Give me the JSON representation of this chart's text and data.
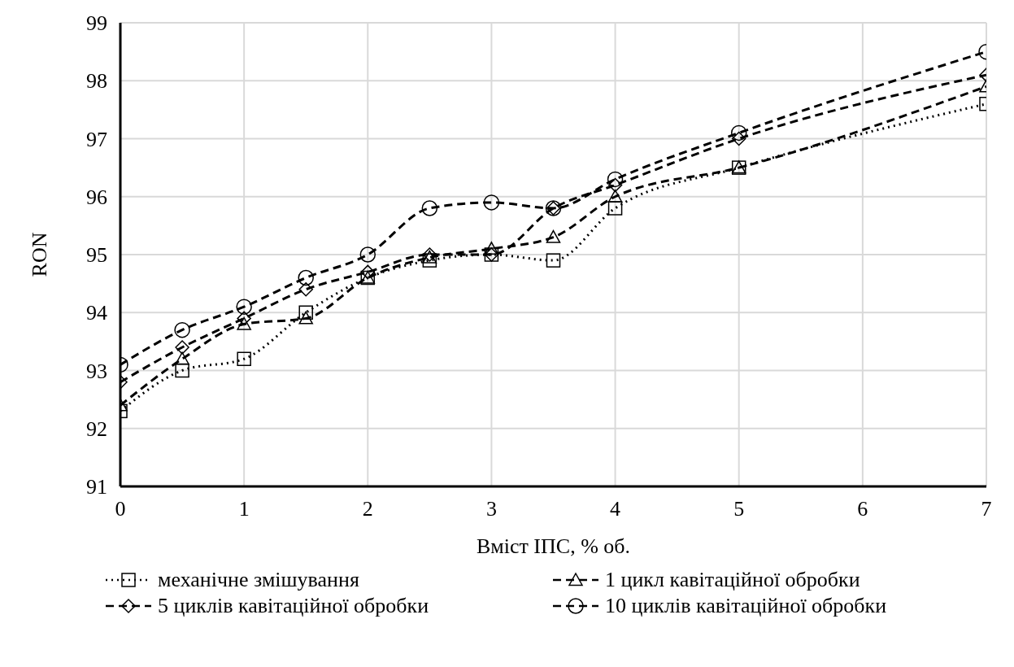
{
  "chart_data": {
    "type": "line",
    "xlabel": "Вміст ІПС, % об.",
    "ylabel": "RON",
    "x": [
      0,
      0.5,
      1,
      1.5,
      2,
      2.5,
      3,
      3.5,
      4,
      5,
      7
    ],
    "xlim": [
      0,
      7
    ],
    "xticks": [
      0,
      1,
      2,
      3,
      4,
      5,
      6,
      7
    ],
    "ylim": [
      91,
      99
    ],
    "yticks": [
      91,
      92,
      93,
      94,
      95,
      96,
      97,
      98,
      99
    ],
    "grid": true,
    "legend": "bottom",
    "series": [
      {
        "name": "механічне змішування",
        "color": "#000000",
        "marker": "square",
        "line_style": "dotted",
        "values": [
          92.3,
          93.0,
          93.2,
          94.0,
          94.6,
          94.9,
          95.0,
          94.9,
          95.8,
          96.5,
          97.6
        ]
      },
      {
        "name": "1 цикл кавітаційної обробки",
        "color": "#000000",
        "marker": "triangle",
        "line_style": "dashed",
        "values": [
          92.4,
          93.2,
          93.8,
          93.9,
          94.6,
          94.95,
          95.1,
          95.3,
          96.0,
          96.5,
          97.9
        ]
      },
      {
        "name": "5 циклів кавітаційної обробки",
        "color": "#000000",
        "marker": "diamond",
        "line_style": "dashed",
        "values": [
          92.8,
          93.4,
          93.9,
          94.4,
          94.7,
          95.0,
          95.0,
          95.8,
          96.2,
          97.0,
          98.1
        ]
      },
      {
        "name": "10 циклів кавітаційної обробки",
        "color": "#000000",
        "marker": "circle",
        "line_style": "dashed",
        "values": [
          93.1,
          93.7,
          94.1,
          94.6,
          95.0,
          95.8,
          95.9,
          95.8,
          96.3,
          97.1,
          98.5
        ]
      }
    ]
  }
}
